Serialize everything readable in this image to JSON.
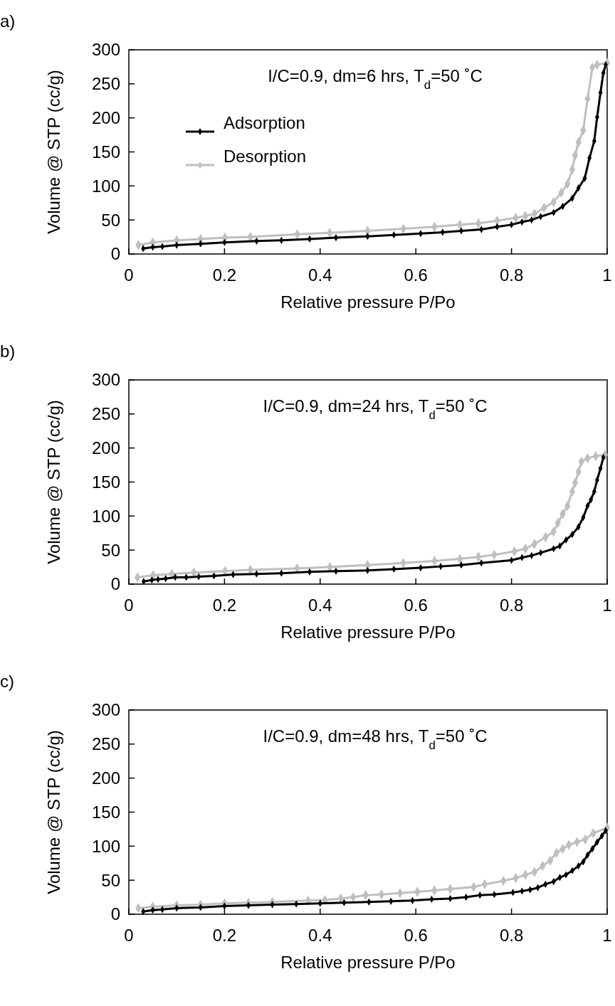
{
  "chart_data": [
    {
      "type": "line",
      "title": "a)",
      "xlabel": "Relative pressure P/Po",
      "ylabel": "Volume @ STP (cc/g)",
      "annotations": [
        "I/C=0.9, dm=6 hrs, T$_{d}$=50 ˚C"
      ],
      "xlim": [
        0,
        1
      ],
      "xticks": [
        0,
        0.2,
        0.4,
        0.6,
        0.8,
        1
      ],
      "ylim": [
        0,
        300
      ],
      "yticks": [
        0,
        50,
        100,
        150,
        200,
        250,
        300
      ],
      "legend": "top left",
      "marker": "diamond",
      "grid": false,
      "series": [
        {
          "name": "Adsorption",
          "color": "#000000",
          "x": [
            0.03,
            0.05,
            0.07,
            0.1,
            0.15,
            0.2,
            0.267,
            0.319,
            0.378,
            0.433,
            0.499,
            0.554,
            0.61,
            0.656,
            0.695,
            0.737,
            0.77,
            0.8,
            0.822,
            0.842,
            0.861,
            0.888,
            0.907,
            0.927,
            0.94,
            0.953,
            0.963,
            0.973,
            0.979,
            0.986,
            0.992,
            0.997
          ],
          "values": [
            8,
            10,
            11,
            13,
            15,
            17,
            19,
            20,
            22,
            24,
            26,
            28,
            30,
            32,
            34,
            36,
            40,
            43,
            47,
            50,
            55,
            61,
            70,
            82,
            97,
            111,
            141,
            166,
            201,
            237,
            266,
            278
          ]
        },
        {
          "name": "Desorption",
          "color": "#bfbfbf",
          "x": [
            0.02,
            0.05,
            0.1,
            0.15,
            0.201,
            0.254,
            0.352,
            0.42,
            0.499,
            0.574,
            0.639,
            0.692,
            0.731,
            0.77,
            0.809,
            0.829,
            0.848,
            0.868,
            0.888,
            0.904,
            0.917,
            0.927,
            0.933,
            0.94,
            0.95,
            0.959,
            0.969,
            0.979,
            1.0
          ],
          "values": [
            13,
            17,
            20,
            22,
            24,
            25,
            29,
            31,
            34,
            37,
            40,
            43,
            45,
            49,
            53,
            56,
            59,
            68,
            76,
            90,
            103,
            124,
            145,
            164,
            182,
            228,
            274,
            278,
            281
          ]
        }
      ]
    },
    {
      "type": "line",
      "title": "b)",
      "xlabel": "Relative pressure P/Po",
      "ylabel": "Volume @ STP (cc/g)",
      "annotations": [
        "I/C=0.9, dm=24 hrs, T$_{d}$=50 ˚C"
      ],
      "xlim": [
        0,
        1
      ],
      "xticks": [
        0,
        0.2,
        0.4,
        0.6,
        0.8,
        1
      ],
      "ylim": [
        0,
        300
      ],
      "yticks": [
        0,
        50,
        100,
        150,
        200,
        250,
        300
      ],
      "marker": "diamond",
      "grid": false,
      "series": [
        {
          "color": "#000000",
          "x": [
            0.031,
            0.048,
            0.061,
            0.077,
            0.097,
            0.12,
            0.146,
            0.178,
            0.218,
            0.267,
            0.319,
            0.378,
            0.433,
            0.499,
            0.554,
            0.61,
            0.652,
            0.695,
            0.737,
            0.8,
            0.822,
            0.842,
            0.861,
            0.888,
            0.901,
            0.914,
            0.927,
            0.94,
            0.95,
            0.959,
            0.966,
            0.973,
            0.979,
            0.986,
            0.992
          ],
          "values": [
            4,
            6,
            7,
            8,
            10,
            10,
            11,
            12,
            14,
            15,
            16,
            18,
            19,
            20,
            22,
            24,
            26,
            28,
            31,
            35,
            39,
            42,
            46,
            52,
            56,
            65,
            73,
            84,
            98,
            115,
            124,
            136,
            153,
            170,
            186
          ]
        },
        {
          "color": "#bfbfbf",
          "x": [
            0.018,
            0.051,
            0.09,
            0.136,
            0.201,
            0.254,
            0.352,
            0.42,
            0.499,
            0.574,
            0.639,
            0.692,
            0.731,
            0.764,
            0.806,
            0.829,
            0.848,
            0.871,
            0.888,
            0.897,
            0.907,
            0.917,
            0.927,
            0.933,
            0.94,
            0.946,
            0.959,
            0.976,
            0.995
          ],
          "values": [
            10,
            13,
            15,
            17,
            19,
            21,
            23,
            25,
            28,
            31,
            34,
            37,
            40,
            43,
            48,
            52,
            59,
            69,
            77,
            90,
            103,
            115,
            136,
            149,
            165,
            180,
            185,
            188,
            190
          ]
        }
      ]
    },
    {
      "type": "line",
      "title": "c)",
      "xlabel": "Relative pressure P/Po",
      "ylabel": "Volume @ STP (cc/g)",
      "annotations": [
        "I/C=0.9, dm=48 hrs, T$_{d}$=50 ˚C"
      ],
      "xlim": [
        0,
        1
      ],
      "xticks": [
        0,
        0.2,
        0.4,
        0.6,
        0.8,
        1
      ],
      "ylim": [
        0,
        300
      ],
      "yticks": [
        0,
        50,
        100,
        150,
        200,
        250,
        300
      ],
      "marker": "diamond",
      "grid": false,
      "series": [
        {
          "color": "#000000",
          "x": [
            0.03,
            0.05,
            0.07,
            0.1,
            0.15,
            0.2,
            0.25,
            0.3,
            0.35,
            0.4,
            0.45,
            0.502,
            0.548,
            0.593,
            0.633,
            0.672,
            0.705,
            0.734,
            0.764,
            0.803,
            0.822,
            0.839,
            0.855,
            0.871,
            0.888,
            0.901,
            0.914,
            0.927,
            0.94,
            0.95,
            0.959,
            0.969,
            0.979,
            0.989,
            0.997
          ],
          "values": [
            4,
            6,
            7,
            9,
            10,
            12,
            13,
            14,
            15,
            16,
            17,
            18,
            19,
            20,
            22,
            23,
            25,
            28,
            29,
            32,
            34,
            36,
            39,
            44,
            48,
            54,
            58,
            64,
            71,
            77,
            87,
            96,
            106,
            115,
            123
          ]
        },
        {
          "color": "#bfbfbf",
          "x": [
            0.02,
            0.05,
            0.1,
            0.15,
            0.2,
            0.25,
            0.3,
            0.375,
            0.41,
            0.443,
            0.469,
            0.495,
            0.528,
            0.567,
            0.603,
            0.639,
            0.672,
            0.721,
            0.744,
            0.783,
            0.809,
            0.829,
            0.848,
            0.865,
            0.881,
            0.894,
            0.907,
            0.92,
            0.937,
            0.954,
            0.971,
            1.0
          ],
          "values": [
            9,
            11,
            13,
            14,
            16,
            17,
            18,
            20,
            21,
            23,
            25,
            28,
            29,
            31,
            33,
            35,
            37,
            40,
            44,
            49,
            53,
            58,
            62,
            71,
            79,
            90,
            96,
            102,
            106,
            110,
            119,
            127
          ]
        }
      ]
    }
  ]
}
